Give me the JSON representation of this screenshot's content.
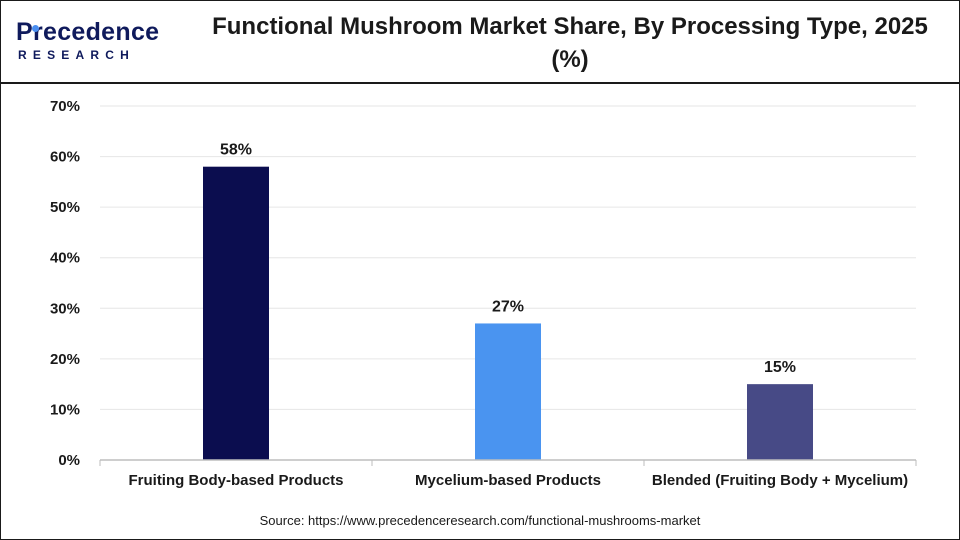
{
  "header": {
    "title": "Functional Mushroom Market Share, By Processing Type, 2025 (%)",
    "logo_main": "Precedence",
    "logo_sub": "RESEARCH"
  },
  "source": "Source: https://www.precedenceresearch.com/functional-mushrooms-market",
  "chart_data": {
    "type": "bar",
    "title": "Functional Mushroom Market Share, By Processing Type, 2025 (%)",
    "categories": [
      "Fruiting Body-based Products",
      "Mycelium-based Products",
      "Blended (Fruiting Body + Mycelium)"
    ],
    "values": [
      58,
      27,
      15
    ],
    "value_labels": [
      "58%",
      "27%",
      "15%"
    ],
    "colors": [
      "#0b0d4f",
      "#4a94f0",
      "#474a86"
    ],
    "ylim": [
      0,
      70
    ],
    "yticks": [
      0,
      10,
      20,
      30,
      40,
      50,
      60,
      70
    ],
    "ytick_labels": [
      "0%",
      "10%",
      "20%",
      "30%",
      "40%",
      "50%",
      "60%",
      "70%"
    ],
    "xlabel": "",
    "ylabel": "",
    "grid": true,
    "legend": "none"
  }
}
